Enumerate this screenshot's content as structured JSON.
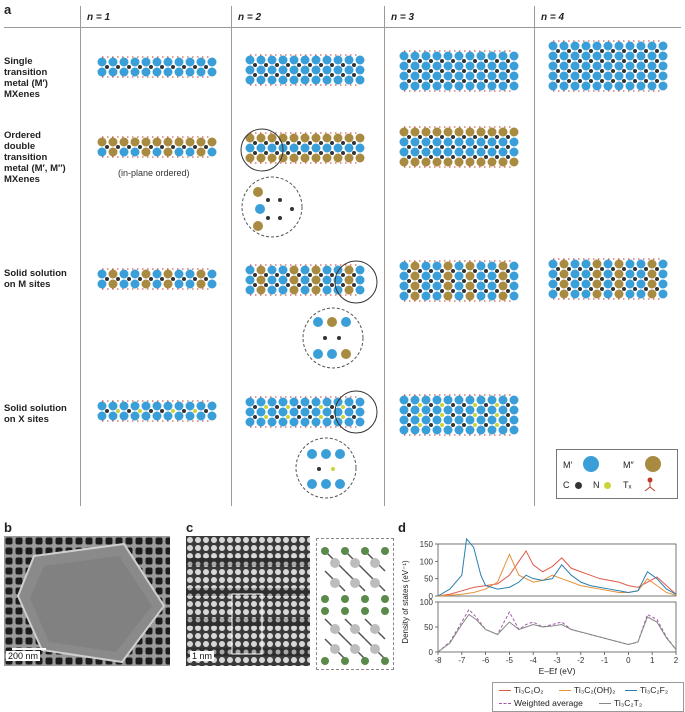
{
  "panels": {
    "a": "a",
    "b": "b",
    "c": "c",
    "d": "d"
  },
  "columns": [
    "n = 1",
    "n = 2",
    "n = 3",
    "n = 4"
  ],
  "rows": [
    {
      "label_lines": [
        "Single transition",
        "metal (M′)",
        "MXenes"
      ]
    },
    {
      "label_lines": [
        "Ordered",
        "double transition",
        "metal (M′, M″)",
        "MXenes"
      ]
    },
    {
      "label_lines": [
        "Solid solution",
        "on M sites"
      ]
    },
    {
      "label_lines": [
        "Solid solution",
        "on X sites"
      ]
    }
  ],
  "in_plane_note": "(in-plane ordered)",
  "atom_legend": {
    "m1": "M′",
    "m2": "M″",
    "c": "C",
    "n": "N",
    "tx": "Tₓ",
    "colors": {
      "m1": "#3a9fd8",
      "m2": "#a88a40",
      "c": "#333333",
      "n": "#c9d43a",
      "tx": "#c0392b"
    }
  },
  "scale_bars": {
    "b": "200 nm",
    "c": "1 nm"
  },
  "chart_data": [
    {
      "type": "line",
      "panel": "d",
      "ylabel": "Density of states (eV⁻¹)",
      "xlabel": "E–Ef (eV)",
      "xlim": [
        -8,
        2
      ],
      "xticks": [
        -8,
        -7,
        -6,
        -5,
        -4,
        -3,
        -2,
        -1,
        0,
        1,
        2
      ],
      "subplots": [
        {
          "ylim": [
            0,
            150
          ],
          "yticks": [
            0,
            50,
            100,
            150
          ],
          "series": [
            {
              "name": "Ti₃C₂O₂",
              "color": "#e05a4a",
              "x": [
                -8,
                -7.5,
                -7,
                -6.5,
                -6,
                -5.5,
                -5,
                -4.6,
                -4.3,
                -4,
                -3.6,
                -3.2,
                -2.8,
                -2.4,
                -2,
                -1.6,
                -1.2,
                -0.8,
                -0.4,
                0,
                0.4,
                0.8,
                1.2,
                1.6,
                2
              ],
              "y": [
                0,
                5,
                15,
                25,
                30,
                35,
                60,
                100,
                130,
                90,
                70,
                85,
                110,
                80,
                70,
                60,
                50,
                45,
                40,
                30,
                25,
                40,
                55,
                30,
                5
              ]
            },
            {
              "name": "Ti₃C₂(OH)₂",
              "color": "#e8923a",
              "x": [
                -8,
                -7.5,
                -7,
                -6.5,
                -6,
                -5.5,
                -5,
                -4.6,
                -4.3,
                -4,
                -3.6,
                -3.2,
                -2.8,
                -2.4,
                -2,
                -1.6,
                -1.2,
                -0.8,
                -0.4,
                0,
                0.4,
                0.8,
                1.2,
                1.6,
                2
              ],
              "y": [
                0,
                2,
                5,
                10,
                20,
                40,
                120,
                60,
                50,
                40,
                45,
                60,
                50,
                40,
                30,
                25,
                20,
                15,
                10,
                10,
                15,
                50,
                30,
                10,
                2
              ]
            },
            {
              "name": "Ti₃C₂F₂",
              "color": "#2a7fb0",
              "x": [
                -8,
                -7.5,
                -7,
                -6.8,
                -6.5,
                -6.2,
                -6,
                -5.5,
                -5,
                -4.6,
                -4.3,
                -4,
                -3.6,
                -3.2,
                -2.8,
                -2.4,
                -2,
                -1.6,
                -1.2,
                -0.8,
                -0.4,
                0,
                0.4,
                0.8,
                1.2,
                1.6,
                2
              ],
              "y": [
                0,
                20,
                60,
                165,
                140,
                60,
                30,
                20,
                25,
                40,
                60,
                50,
                45,
                50,
                90,
                60,
                40,
                30,
                25,
                20,
                15,
                10,
                15,
                70,
                50,
                20,
                5
              ]
            }
          ]
        },
        {
          "ylim": [
            0,
            100
          ],
          "yticks": [
            0,
            50,
            100
          ],
          "series": [
            {
              "name": "Weighted average",
              "color": "#a05aa8",
              "dashed": true,
              "x": [
                -8,
                -7.5,
                -7,
                -6.7,
                -6.4,
                -6,
                -5.5,
                -5,
                -4.6,
                -4.3,
                -4,
                -3.6,
                -3.2,
                -2.8,
                -2.4,
                -2,
                -1.6,
                -1.2,
                -0.8,
                -0.4,
                0,
                0.4,
                0.8,
                1.2,
                1.6,
                2
              ],
              "y": [
                0,
                20,
                60,
                85,
                70,
                45,
                35,
                80,
                45,
                55,
                60,
                50,
                55,
                60,
                45,
                40,
                35,
                30,
                25,
                20,
                15,
                20,
                75,
                65,
                30,
                5
              ]
            },
            {
              "name": "Ti₃C₂T₂",
              "color": "#888888",
              "x": [
                -8,
                -7.5,
                -7,
                -6.7,
                -6.4,
                -6,
                -5.5,
                -5,
                -4.6,
                -4.3,
                -4,
                -3.6,
                -3.2,
                -2.8,
                -2.4,
                -2,
                -1.6,
                -1.2,
                -0.8,
                -0.4,
                0,
                0.4,
                0.8,
                1.2,
                1.6,
                2
              ],
              "y": [
                0,
                18,
                55,
                75,
                65,
                45,
                35,
                60,
                45,
                50,
                55,
                50,
                52,
                55,
                45,
                40,
                35,
                30,
                25,
                20,
                15,
                20,
                70,
                60,
                28,
                5
              ]
            }
          ]
        }
      ]
    }
  ]
}
